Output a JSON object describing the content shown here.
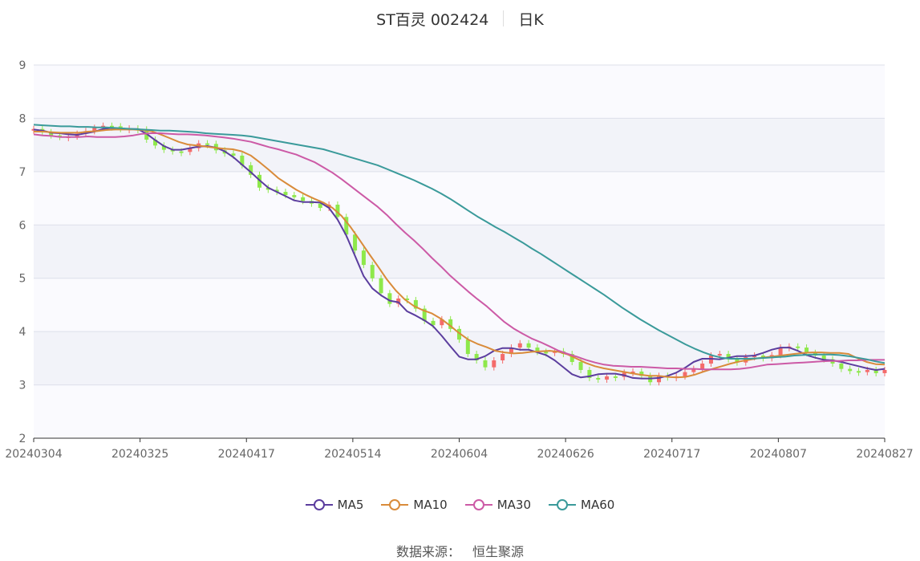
{
  "title": {
    "stock": "ST百灵 002424",
    "period": "日K"
  },
  "legend": [
    {
      "label": "MA5",
      "color": "#5b3d9e"
    },
    {
      "label": "MA10",
      "color": "#d98b3a"
    },
    {
      "label": "MA30",
      "color": "#cc5aa6"
    },
    {
      "label": "MA60",
      "color": "#3a9a9a"
    }
  ],
  "source": {
    "label": "数据来源：",
    "value": "恒生聚源"
  },
  "colors": {
    "up": "#f46b6b",
    "down": "#8ee84b",
    "band_light": "#fafafe",
    "band_dark": "#f2f3f9",
    "grid": "#dde0ea"
  },
  "chart_data": {
    "type": "candlestick",
    "ylim": [
      2,
      9
    ],
    "yticks": [
      2,
      3,
      4,
      5,
      6,
      7,
      8,
      9
    ],
    "xticks": [
      "20240304",
      "20240325",
      "20240417",
      "20240514",
      "20240604",
      "20240626",
      "20240717",
      "20240807",
      "20240827"
    ],
    "series": [
      {
        "name": "MA5",
        "values": [
          7.79,
          7.77,
          7.73,
          7.72,
          7.7,
          7.69,
          7.72,
          7.75,
          7.8,
          7.82,
          7.81,
          7.8,
          7.8,
          7.71,
          7.59,
          7.48,
          7.41,
          7.41,
          7.44,
          7.47,
          7.48,
          7.45,
          7.38,
          7.27,
          7.13,
          6.99,
          6.84,
          6.7,
          6.62,
          6.54,
          6.46,
          6.43,
          6.43,
          6.42,
          6.32,
          6.1,
          5.8,
          5.42,
          5.04,
          4.81,
          4.68,
          4.58,
          4.55,
          4.38,
          4.3,
          4.21,
          4.1,
          3.92,
          3.72,
          3.53,
          3.48,
          3.48,
          3.54,
          3.64,
          3.69,
          3.69,
          3.66,
          3.66,
          3.61,
          3.56,
          3.46,
          3.33,
          3.2,
          3.14,
          3.16,
          3.2,
          3.21,
          3.21,
          3.18,
          3.13,
          3.12,
          3.12,
          3.13,
          3.17,
          3.23,
          3.32,
          3.43,
          3.49,
          3.49,
          3.48,
          3.51,
          3.54,
          3.54,
          3.55,
          3.6,
          3.66,
          3.7,
          3.7,
          3.64,
          3.56,
          3.51,
          3.47,
          3.46,
          3.43,
          3.39,
          3.35,
          3.31,
          3.28,
          3.3
        ]
      },
      {
        "name": "MA10",
        "values": [
          7.75,
          7.75,
          7.74,
          7.73,
          7.73,
          7.73,
          7.75,
          7.76,
          7.78,
          7.79,
          7.79,
          7.79,
          7.78,
          7.76,
          7.7,
          7.63,
          7.56,
          7.51,
          7.49,
          7.47,
          7.45,
          7.43,
          7.42,
          7.38,
          7.3,
          7.17,
          7.03,
          6.88,
          6.77,
          6.66,
          6.57,
          6.49,
          6.42,
          6.32,
          6.17,
          5.96,
          5.72,
          5.47,
          5.23,
          4.98,
          4.77,
          4.6,
          4.48,
          4.4,
          4.34,
          4.24,
          4.11,
          3.97,
          3.85,
          3.77,
          3.71,
          3.64,
          3.61,
          3.59,
          3.6,
          3.62,
          3.63,
          3.64,
          3.62,
          3.57,
          3.49,
          3.41,
          3.35,
          3.31,
          3.28,
          3.25,
          3.22,
          3.19,
          3.17,
          3.17,
          3.15,
          3.14,
          3.15,
          3.19,
          3.25,
          3.3,
          3.35,
          3.4,
          3.44,
          3.47,
          3.5,
          3.52,
          3.54,
          3.56,
          3.58,
          3.6,
          3.61,
          3.61,
          3.6,
          3.6,
          3.58,
          3.5,
          3.43,
          3.39,
          3.38
        ]
      },
      {
        "name": "MA30",
        "values": [
          7.7,
          7.68,
          7.67,
          7.65,
          7.65,
          7.65,
          7.66,
          7.65,
          7.65,
          7.65,
          7.66,
          7.68,
          7.71,
          7.72,
          7.72,
          7.71,
          7.7,
          7.7,
          7.69,
          7.68,
          7.66,
          7.64,
          7.62,
          7.59,
          7.56,
          7.51,
          7.46,
          7.42,
          7.37,
          7.32,
          7.25,
          7.18,
          7.08,
          6.98,
          6.86,
          6.73,
          6.6,
          6.47,
          6.34,
          6.19,
          6.02,
          5.86,
          5.71,
          5.55,
          5.38,
          5.22,
          5.05,
          4.9,
          4.75,
          4.61,
          4.48,
          4.33,
          4.18,
          4.06,
          3.96,
          3.87,
          3.8,
          3.72,
          3.64,
          3.58,
          3.53,
          3.47,
          3.42,
          3.38,
          3.36,
          3.35,
          3.34,
          3.34,
          3.33,
          3.32,
          3.31,
          3.31,
          3.3,
          3.3,
          3.29,
          3.29,
          3.29,
          3.29,
          3.3,
          3.32,
          3.35,
          3.38,
          3.39,
          3.4,
          3.41,
          3.42,
          3.43,
          3.44,
          3.45,
          3.45,
          3.46,
          3.46,
          3.47,
          3.47,
          3.47
        ]
      },
      {
        "name": "MA60",
        "values": [
          7.88,
          7.87,
          7.86,
          7.85,
          7.85,
          7.84,
          7.84,
          7.83,
          7.83,
          7.82,
          7.81,
          7.8,
          7.79,
          7.78,
          7.77,
          7.77,
          7.76,
          7.75,
          7.74,
          7.72,
          7.71,
          7.7,
          7.69,
          7.68,
          7.66,
          7.63,
          7.6,
          7.57,
          7.54,
          7.51,
          7.48,
          7.45,
          7.42,
          7.37,
          7.32,
          7.27,
          7.22,
          7.17,
          7.12,
          7.05,
          6.98,
          6.91,
          6.84,
          6.76,
          6.68,
          6.59,
          6.49,
          6.38,
          6.27,
          6.16,
          6.06,
          5.96,
          5.87,
          5.77,
          5.67,
          5.56,
          5.46,
          5.35,
          5.24,
          5.13,
          5.02,
          4.91,
          4.8,
          4.69,
          4.57,
          4.45,
          4.34,
          4.23,
          4.13,
          4.03,
          3.94,
          3.85,
          3.76,
          3.68,
          3.61,
          3.55,
          3.51,
          3.49,
          3.49,
          3.49,
          3.5,
          3.51,
          3.52,
          3.53,
          3.55,
          3.56,
          3.57,
          3.57,
          3.57,
          3.56,
          3.54,
          3.51,
          3.48,
          3.44,
          3.41
        ]
      },
      {
        "name": "K",
        "values": [
          7.8,
          7.74,
          7.68,
          7.65,
          7.66,
          7.71,
          7.76,
          7.82,
          7.86,
          7.85,
          7.8,
          7.81,
          7.79,
          7.6,
          7.49,
          7.41,
          7.38,
          7.37,
          7.44,
          7.53,
          7.52,
          7.4,
          7.34,
          7.3,
          7.12,
          6.94,
          6.7,
          6.66,
          6.62,
          6.56,
          6.52,
          6.45,
          6.4,
          6.32,
          6.38,
          6.15,
          5.82,
          5.52,
          5.25,
          5.0,
          4.72,
          4.52,
          4.62,
          4.59,
          4.43,
          4.2,
          4.12,
          4.23,
          4.05,
          3.85,
          3.58,
          3.46,
          3.33,
          3.46,
          3.58,
          3.7,
          3.78,
          3.7,
          3.62,
          3.6,
          3.63,
          3.58,
          3.43,
          3.28,
          3.13,
          3.1,
          3.16,
          3.15,
          3.23,
          3.25,
          3.17,
          3.05,
          3.17,
          3.15,
          3.16,
          3.24,
          3.3,
          3.4,
          3.55,
          3.58,
          3.48,
          3.42,
          3.52,
          3.55,
          3.5,
          3.56,
          3.7,
          3.72,
          3.7,
          3.6,
          3.55,
          3.48,
          3.4,
          3.3,
          3.26,
          3.24,
          3.28,
          3.22,
          3.28
        ]
      }
    ]
  }
}
